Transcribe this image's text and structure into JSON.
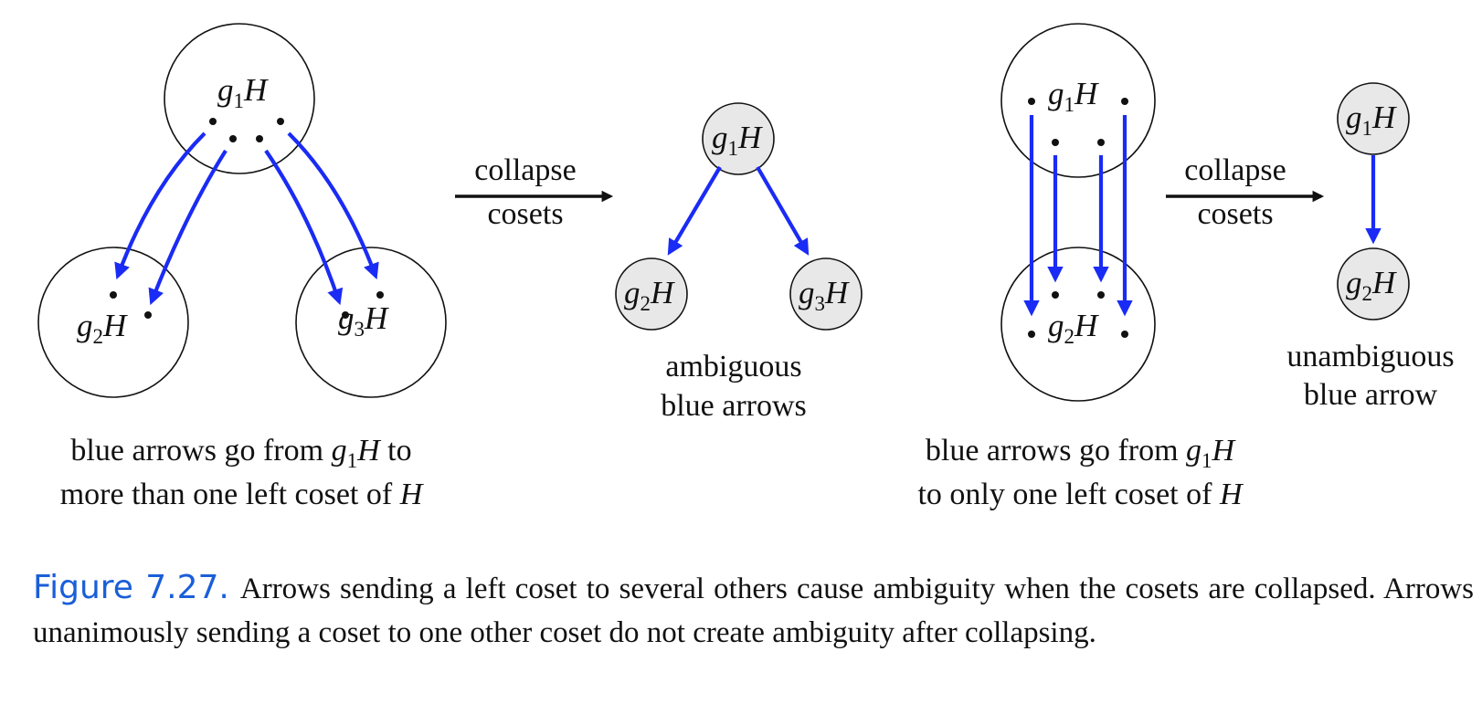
{
  "labels": {
    "g": "g",
    "H": "H",
    "sub1": "1",
    "sub2": "2",
    "sub3": "3"
  },
  "panel_left": {
    "caption_line1_prefix": "blue arrows go from ",
    "caption_line1_suffix": " to",
    "caption_line2_prefix": "more than one left coset of "
  },
  "collapse_label": {
    "line1": "collapse",
    "line2": "cosets"
  },
  "panel_ambiguous": {
    "line1": "ambiguous",
    "line2": "blue arrows"
  },
  "panel_right": {
    "caption_line1_prefix": "blue arrows go from ",
    "caption_line2_prefix": "to only one left coset of "
  },
  "panel_unambiguous": {
    "line1": "unambiguous",
    "line2": "blue arrow"
  },
  "figure": {
    "number": "Figure 7.27.",
    "text": "Arrows sending a left coset to several others cause ambiguity when the cosets are collapsed. Arrows unanimously sending a coset to one other coset do not create ambiguity after collapsing."
  },
  "colors": {
    "arrow": "#1a2bf5",
    "node_fill": "#e8e8e8",
    "figure_label": "#1a5ed8"
  }
}
